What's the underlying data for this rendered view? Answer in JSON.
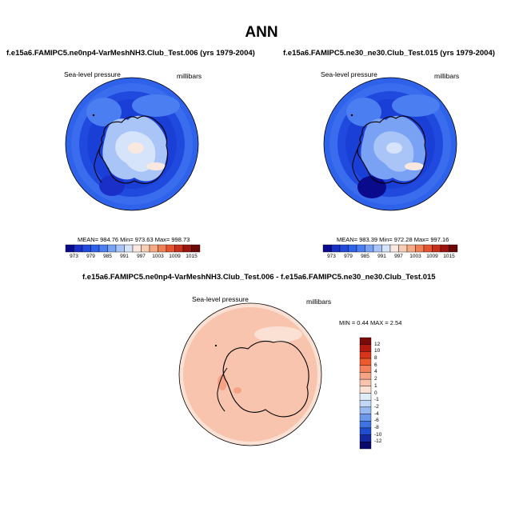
{
  "page_title": "ANN",
  "chart_data": [
    {
      "type": "heatmap",
      "title": "f.e15a6.FAMIPC5.ne0np4-VarMeshNH3.Club_Test.006 (yrs 1979-2004)",
      "field_label": "Sea-level pressure",
      "units_label": "millibars",
      "stats": {
        "mean": 984.76,
        "min": 973.63,
        "max": 998.73
      },
      "stats_text": "MEAN= 984.76   Min= 973.63   Max= 998.73",
      "colorbar_ticks": [
        "973",
        "979",
        "985",
        "991",
        "997",
        "1003",
        "1009",
        "1015"
      ],
      "colorbar_colors": [
        "#0a0a8c",
        "#1a2fc8",
        "#2049dd",
        "#2f62ea",
        "#4b7ef0",
        "#7aa2f4",
        "#a9c5f8",
        "#d6e4fb",
        "#f8e8df",
        "#f8cdb5",
        "#f6a985",
        "#f07f56",
        "#e4542e",
        "#c7301a",
        "#9b1410",
        "#6b0808"
      ]
    },
    {
      "type": "heatmap",
      "title": "f.e15a6.FAMIPC5.ne30_ne30.Club_Test.015 (yrs 1979-2004)",
      "field_label": "Sea-level pressure",
      "units_label": "millibars",
      "stats": {
        "mean": 983.39,
        "min": 972.28,
        "max": 997.16
      },
      "stats_text": "MEAN= 983.39   Min= 972.28   Max= 997.16",
      "colorbar_ticks": [
        "973",
        "979",
        "985",
        "991",
        "997",
        "1003",
        "1009",
        "1015"
      ],
      "colorbar_colors": [
        "#0a0a8c",
        "#1a2fc8",
        "#2049dd",
        "#2f62ea",
        "#4b7ef0",
        "#7aa2f4",
        "#a9c5f8",
        "#d6e4fb",
        "#f8e8df",
        "#f8cdb5",
        "#f6a985",
        "#f07f56",
        "#e4542e",
        "#c7301a",
        "#9b1410",
        "#6b0808"
      ]
    },
    {
      "type": "heatmap",
      "title": "f.e15a6.FAMIPC5.ne0np4-VarMeshNH3.Club_Test.006 - f.e15a6.FAMIPC5.ne30_ne30.Club_Test.015",
      "field_label": "Sea-level pressure",
      "units_label": "millibars",
      "stats": {
        "min": 0.44,
        "max": 2.54
      },
      "stats_text": "MIN =  0.44 MAX =   2.54",
      "colorbar_ticks": [
        "12",
        "10",
        "8",
        "6",
        "4",
        "2",
        "1",
        "0",
        "-1",
        "-2",
        "-4",
        "-6",
        "-8",
        "-10",
        "-12"
      ],
      "colorbar_colors": [
        "#7a0a0a",
        "#b21a10",
        "#d8341a",
        "#ec5a2e",
        "#f3805a",
        "#f6a385",
        "#f8c4ad",
        "#fbe1d3",
        "#e1ecf9",
        "#c2d6f5",
        "#98b9f1",
        "#6c98ec",
        "#3f73e2",
        "#1f4ccd",
        "#14289f",
        "#0a0a6c"
      ]
    }
  ]
}
